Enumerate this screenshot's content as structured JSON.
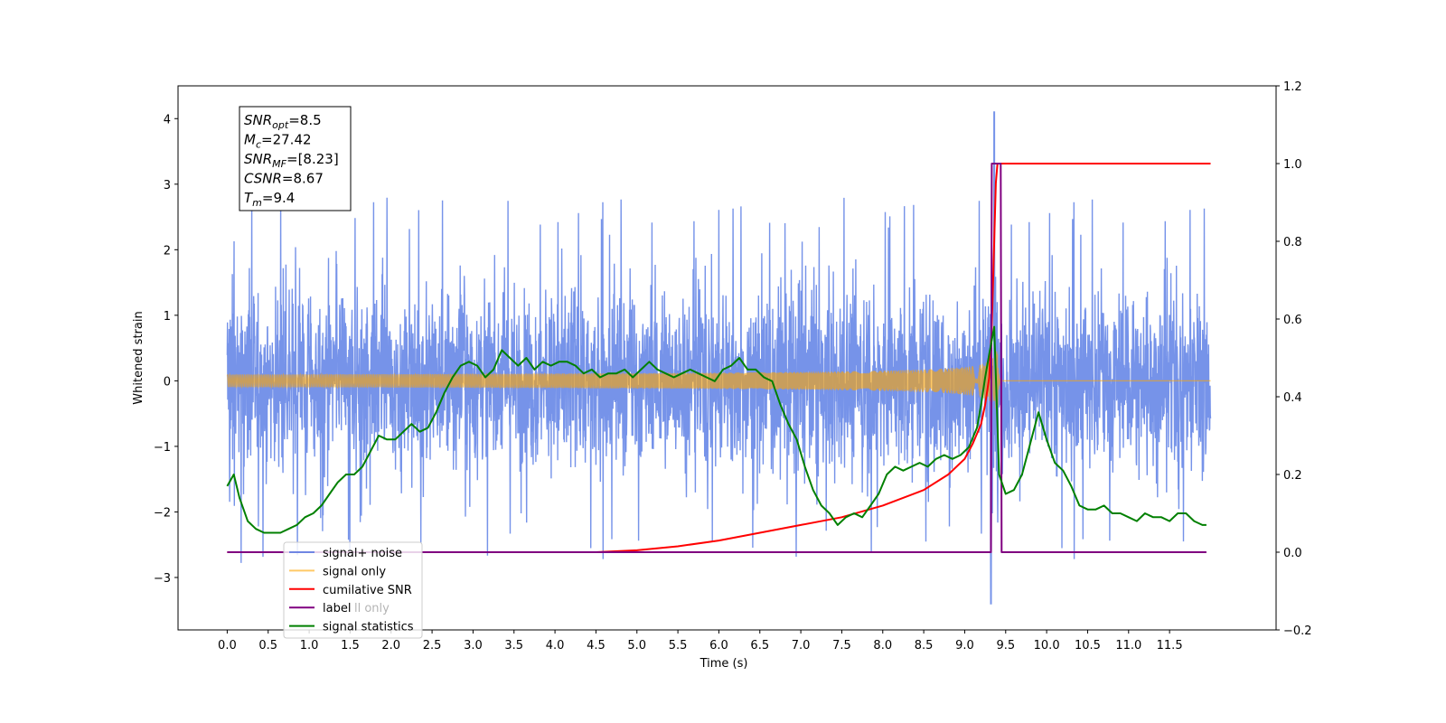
{
  "chart_data": {
    "type": "line",
    "xlabel": "Time (s)",
    "ylabel": "Whitened strain",
    "ylabel_right": "",
    "xlim": [
      -0.6,
      12.8
    ],
    "ylim": [
      -3.8,
      4.5
    ],
    "ylim_right": [
      -0.2,
      1.2
    ],
    "x_ticks": [
      "0.0",
      "0.5",
      "1.0",
      "1.5",
      "2.0",
      "2.5",
      "3.0",
      "3.5",
      "4.0",
      "4.5",
      "5.0",
      "5.5",
      "6.0",
      "6.5",
      "7.0",
      "7.5",
      "8.0",
      "8.5",
      "9.0",
      "9.5",
      "10.0",
      "10.5",
      "11.0",
      "11.5"
    ],
    "y_ticks": [
      "4",
      "3",
      "2",
      "1",
      "0",
      "−1",
      "−2",
      "−3"
    ],
    "y_ticks_right": [
      "1.2",
      "1.0",
      "0.8",
      "0.6",
      "0.4",
      "0.2",
      "0.0",
      "−0.2"
    ],
    "grid": false,
    "legend_position": "lower-left",
    "stats_box": {
      "lines": [
        {
          "sym": "SNR",
          "sub": "opt",
          "val": "=8.5"
        },
        {
          "sym": "M",
          "sub": "c",
          "val": "=27.42"
        },
        {
          "sym": "SNR",
          "sub": "MF",
          "val": "=[8.23]"
        },
        {
          "sym": "CSNR",
          "sub": "",
          "val": "=8.67"
        },
        {
          "sym": "T",
          "sub": "m",
          "val": "=9.4"
        }
      ]
    },
    "legend_extra_text": "ll only",
    "series": [
      {
        "name": "signal+ noise",
        "color": "#4169e1",
        "axis": "left",
        "kind": "noise",
        "x_range": [
          0,
          12
        ],
        "envelope": [
          -2.3,
          2.4
        ],
        "peak": {
          "x": 9.36,
          "y": 4.1
        },
        "min": {
          "x": 9.32,
          "y": -3.4
        }
      },
      {
        "name": "signal only",
        "color": "#ffa500",
        "axis": "left",
        "kind": "chirp",
        "x_range": [
          0,
          12
        ],
        "merger_time": 9.4,
        "peak_amplitude": 0.45
      },
      {
        "name": "cumilative SNR",
        "color": "#ff0000",
        "axis": "right",
        "x": [
          0,
          4.5,
          5.0,
          5.5,
          6.0,
          6.5,
          7.0,
          7.5,
          8.0,
          8.5,
          8.8,
          9.0,
          9.1,
          9.2,
          9.25,
          9.3,
          9.33,
          9.36,
          9.38,
          9.4,
          12.0
        ],
        "y": [
          0.0,
          0.0,
          0.005,
          0.015,
          0.03,
          0.05,
          0.07,
          0.09,
          0.12,
          0.16,
          0.2,
          0.24,
          0.28,
          0.33,
          0.38,
          0.45,
          0.58,
          0.8,
          0.95,
          1.0,
          1.0
        ]
      },
      {
        "name": "label",
        "color": "#800080",
        "axis": "right",
        "x": [
          0,
          9.32,
          9.33,
          9.44,
          9.45,
          11.95
        ],
        "y": [
          0,
          0,
          1,
          1,
          0,
          0
        ]
      },
      {
        "name": "signal statistics",
        "color": "#008000",
        "axis": "right",
        "x": [
          0.0,
          0.08,
          0.15,
          0.25,
          0.35,
          0.45,
          0.55,
          0.65,
          0.75,
          0.85,
          0.95,
          1.05,
          1.15,
          1.25,
          1.35,
          1.45,
          1.55,
          1.65,
          1.75,
          1.85,
          1.95,
          2.05,
          2.15,
          2.25,
          2.35,
          2.45,
          2.55,
          2.65,
          2.75,
          2.85,
          2.95,
          3.05,
          3.15,
          3.25,
          3.35,
          3.45,
          3.55,
          3.65,
          3.75,
          3.85,
          3.95,
          4.05,
          4.15,
          4.25,
          4.35,
          4.45,
          4.55,
          4.65,
          4.75,
          4.85,
          4.95,
          5.05,
          5.15,
          5.25,
          5.35,
          5.45,
          5.55,
          5.65,
          5.75,
          5.85,
          5.95,
          6.05,
          6.15,
          6.25,
          6.35,
          6.45,
          6.55,
          6.65,
          6.75,
          6.85,
          6.95,
          7.05,
          7.15,
          7.25,
          7.35,
          7.45,
          7.55,
          7.65,
          7.75,
          7.85,
          7.95,
          8.05,
          8.15,
          8.25,
          8.35,
          8.45,
          8.55,
          8.65,
          8.75,
          8.85,
          8.95,
          9.05,
          9.15,
          9.2,
          9.25,
          9.3,
          9.36,
          9.42,
          9.5,
          9.6,
          9.7,
          9.8,
          9.9,
          10.0,
          10.1,
          10.2,
          10.3,
          10.4,
          10.5,
          10.6,
          10.7,
          10.8,
          10.9,
          11.0,
          11.1,
          11.2,
          11.3,
          11.4,
          11.5,
          11.6,
          11.7,
          11.8,
          11.9,
          11.95
        ],
        "y": [
          0.17,
          0.2,
          0.14,
          0.08,
          0.06,
          0.05,
          0.05,
          0.05,
          0.06,
          0.07,
          0.09,
          0.1,
          0.12,
          0.15,
          0.18,
          0.2,
          0.2,
          0.22,
          0.26,
          0.3,
          0.29,
          0.29,
          0.31,
          0.33,
          0.31,
          0.32,
          0.36,
          0.41,
          0.45,
          0.48,
          0.49,
          0.48,
          0.45,
          0.47,
          0.52,
          0.5,
          0.48,
          0.5,
          0.47,
          0.49,
          0.48,
          0.49,
          0.49,
          0.48,
          0.46,
          0.47,
          0.45,
          0.46,
          0.46,
          0.47,
          0.45,
          0.47,
          0.49,
          0.47,
          0.46,
          0.45,
          0.46,
          0.47,
          0.46,
          0.45,
          0.44,
          0.47,
          0.48,
          0.5,
          0.47,
          0.47,
          0.45,
          0.44,
          0.38,
          0.33,
          0.29,
          0.22,
          0.16,
          0.12,
          0.1,
          0.07,
          0.09,
          0.1,
          0.09,
          0.12,
          0.15,
          0.2,
          0.22,
          0.21,
          0.22,
          0.23,
          0.22,
          0.24,
          0.25,
          0.24,
          0.25,
          0.27,
          0.32,
          0.38,
          0.45,
          0.51,
          0.58,
          0.2,
          0.15,
          0.16,
          0.2,
          0.28,
          0.36,
          0.29,
          0.23,
          0.21,
          0.17,
          0.12,
          0.11,
          0.11,
          0.12,
          0.1,
          0.1,
          0.09,
          0.08,
          0.1,
          0.09,
          0.09,
          0.08,
          0.1,
          0.1,
          0.08,
          0.07,
          0.07
        ]
      }
    ]
  }
}
